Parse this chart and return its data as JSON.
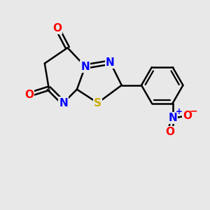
{
  "background_color": "#e8e8e8",
  "bond_color": "#000000",
  "n_color": "#0000ff",
  "s_color": "#ccaa00",
  "o_color": "#ff0000",
  "figsize": [
    3.0,
    3.0
  ],
  "dpi": 100,
  "xlim": [
    0,
    10
  ],
  "ylim": [
    0,
    10
  ],
  "font_size": 11,
  "bond_lw": 1.8
}
